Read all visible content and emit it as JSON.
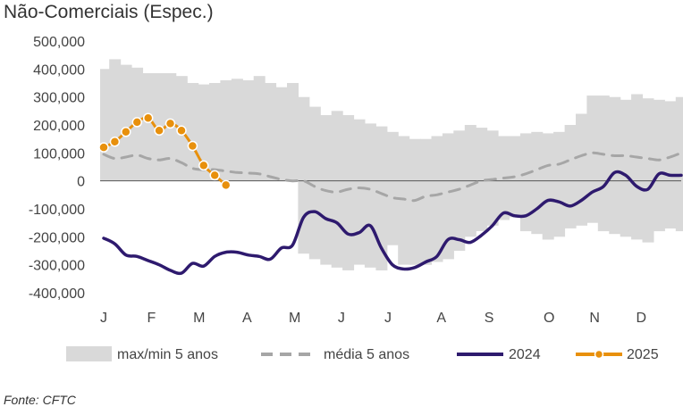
{
  "title": "Não-Comerciais (Espec.)",
  "source": "Fonte: CFTC",
  "chart_data": {
    "type": "line",
    "ylim": [
      -400000,
      500000
    ],
    "y_ticks": [
      500000,
      400000,
      300000,
      200000,
      100000,
      0,
      -100000,
      -200000,
      -300000,
      -400000
    ],
    "y_tick_labels": [
      "500,000",
      "400,000",
      "300,000",
      "200,000",
      "100,000",
      "0",
      "-100,000",
      "-200,000",
      "-300,000",
      "-400,000"
    ],
    "x_range": [
      1,
      53
    ],
    "x_tick_positions": [
      1,
      5.3,
      9.6,
      13.9,
      18.2,
      22.4,
      26.6,
      31.4,
      35.7,
      41.1,
      45.2,
      49.4
    ],
    "x_tick_labels": [
      "J",
      "F",
      "M",
      "A",
      "M",
      "J",
      "J",
      "A",
      "S",
      "O",
      "N",
      "D"
    ],
    "legend_position": "bottom",
    "band_color": "#d9d9d9",
    "zero_line_color": "#555555",
    "range_band": {
      "name": "max/min 5 anos",
      "color": "#d9d9d9",
      "max": [
        400000,
        435000,
        415000,
        405000,
        385000,
        385000,
        385000,
        375000,
        350000,
        345000,
        350000,
        360000,
        365000,
        360000,
        375000,
        350000,
        335000,
        350000,
        300000,
        265000,
        235000,
        250000,
        235000,
        220000,
        205000,
        195000,
        175000,
        160000,
        150000,
        150000,
        160000,
        170000,
        180000,
        200000,
        190000,
        180000,
        160000,
        160000,
        170000,
        175000,
        170000,
        175000,
        200000,
        240000,
        305000,
        305000,
        300000,
        290000,
        310000,
        295000,
        290000,
        285000,
        300000
      ],
      "min": [
        0,
        0,
        0,
        0,
        0,
        0,
        0,
        0,
        0,
        0,
        0,
        0,
        0,
        0,
        0,
        0,
        0,
        0,
        -260000,
        -280000,
        -300000,
        -310000,
        -320000,
        -300000,
        -310000,
        -320000,
        -230000,
        -300000,
        -300000,
        -300000,
        -290000,
        -280000,
        -250000,
        -200000,
        -180000,
        -160000,
        -140000,
        -130000,
        -180000,
        -190000,
        -210000,
        -200000,
        -170000,
        -160000,
        -150000,
        -180000,
        -190000,
        -200000,
        -210000,
        -220000,
        -180000,
        -170000,
        -180000
      ]
    },
    "series": [
      {
        "name": "média 5 anos",
        "color": "#a6a6a6",
        "style": "dashed",
        "x": [
          1,
          2,
          3,
          4,
          5,
          6,
          7,
          8,
          9,
          10,
          11,
          12,
          13,
          14,
          15,
          16,
          17,
          18,
          19,
          20,
          21,
          22,
          23,
          24,
          25,
          26,
          27,
          28,
          29,
          30,
          31,
          32,
          33,
          34,
          35,
          36,
          37,
          38,
          39,
          40,
          41,
          42,
          43,
          44,
          45,
          46,
          47,
          48,
          49,
          50,
          51,
          52,
          53
        ],
        "y": [
          95000,
          80000,
          85000,
          92000,
          80000,
          75000,
          80000,
          65000,
          45000,
          40000,
          40000,
          35000,
          30000,
          28000,
          25000,
          15000,
          5000,
          0,
          0,
          -20000,
          -35000,
          -40000,
          -30000,
          -25000,
          -30000,
          -45000,
          -60000,
          -65000,
          -70000,
          -55000,
          -50000,
          -40000,
          -30000,
          -15000,
          0,
          5000,
          10000,
          15000,
          25000,
          40000,
          55000,
          60000,
          75000,
          90000,
          100000,
          95000,
          90000,
          90000,
          85000,
          80000,
          75000,
          85000,
          100000
        ]
      },
      {
        "name": "2024",
        "color": "#2e1a6e",
        "style": "solid",
        "x": [
          1,
          2,
          3,
          4,
          5,
          6,
          7,
          8,
          9,
          10,
          11,
          12,
          13,
          14,
          15,
          16,
          17,
          18,
          19,
          20,
          21,
          22,
          23,
          24,
          25,
          26,
          27,
          28,
          29,
          30,
          31,
          32,
          33,
          34,
          35,
          36,
          37,
          38,
          39,
          40,
          41,
          42,
          43,
          44,
          45,
          46,
          47,
          48,
          49,
          50,
          51,
          52,
          53
        ],
        "y": [
          -205000,
          -225000,
          -265000,
          -270000,
          -285000,
          -300000,
          -320000,
          -330000,
          -295000,
          -305000,
          -270000,
          -255000,
          -255000,
          -265000,
          -270000,
          -280000,
          -240000,
          -230000,
          -130000,
          -110000,
          -135000,
          -150000,
          -190000,
          -185000,
          -160000,
          -240000,
          -300000,
          -315000,
          -310000,
          -290000,
          -270000,
          -210000,
          -210000,
          -220000,
          -195000,
          -160000,
          -115000,
          -125000,
          -125000,
          -100000,
          -70000,
          -75000,
          -90000,
          -70000,
          -40000,
          -20000,
          30000,
          20000,
          -20000,
          -30000,
          25000,
          20000,
          20000
        ]
      },
      {
        "name": "2025",
        "color": "#e8900c",
        "style": "solid-markers",
        "x": [
          1,
          2,
          3,
          4,
          5,
          6,
          7,
          8,
          9,
          10,
          11,
          12
        ],
        "y": [
          120000,
          140000,
          175000,
          210000,
          225000,
          180000,
          205000,
          180000,
          125000,
          55000,
          20000,
          -15000
        ]
      }
    ],
    "legend": [
      {
        "key": "range_band",
        "label": "max/min 5 anos"
      },
      {
        "key": "avg",
        "label": "média 5 anos"
      },
      {
        "key": "y2024",
        "label": "2024"
      },
      {
        "key": "y2025",
        "label": "2025"
      }
    ]
  }
}
